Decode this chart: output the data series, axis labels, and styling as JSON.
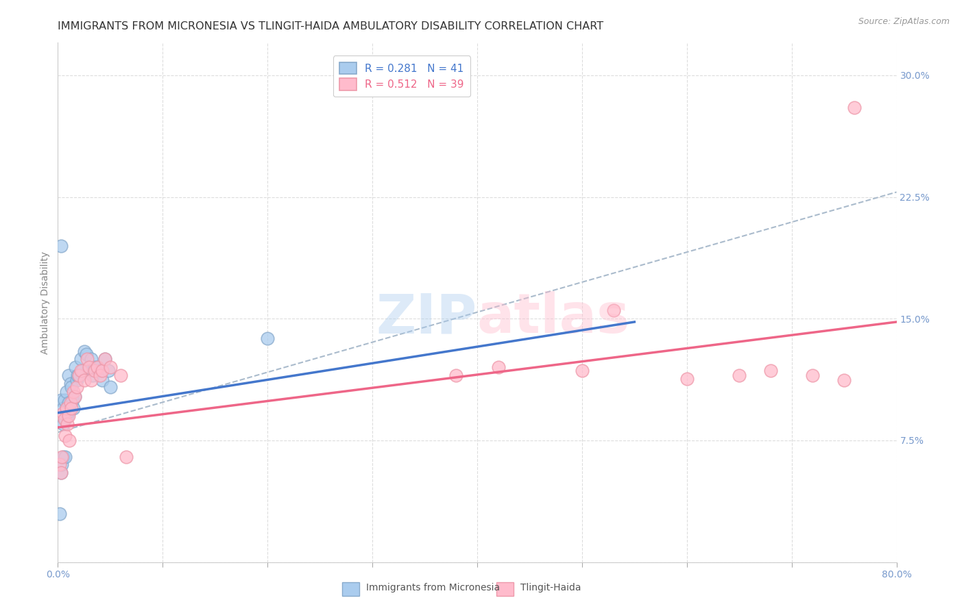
{
  "title": "IMMIGRANTS FROM MICRONESIA VS TLINGIT-HAIDA AMBULATORY DISABILITY CORRELATION CHART",
  "source": "Source: ZipAtlas.com",
  "ylabel": "Ambulatory Disability",
  "xlim": [
    0.0,
    0.8
  ],
  "ylim": [
    0.0,
    0.32
  ],
  "xticks": [
    0.0,
    0.1,
    0.2,
    0.3,
    0.4,
    0.5,
    0.6,
    0.7,
    0.8
  ],
  "xticklabels": [
    "0.0%",
    "",
    "",
    "",
    "",
    "",
    "",
    "",
    "80.0%"
  ],
  "yticks": [
    0.0,
    0.075,
    0.15,
    0.225,
    0.3
  ],
  "yticklabels": [
    "",
    "7.5%",
    "15.0%",
    "22.5%",
    "30.0%"
  ],
  "R_blue": 0.281,
  "N_blue": 41,
  "R_pink": 0.512,
  "N_pink": 39,
  "legend_label_blue": "Immigrants from Micronesia",
  "legend_label_pink": "Tlingit-Haida",
  "blue_scatter_x": [
    0.002,
    0.003,
    0.003,
    0.004,
    0.005,
    0.005,
    0.005,
    0.006,
    0.007,
    0.007,
    0.008,
    0.008,
    0.009,
    0.01,
    0.01,
    0.011,
    0.012,
    0.013,
    0.014,
    0.015,
    0.016,
    0.017,
    0.018,
    0.019,
    0.02,
    0.022,
    0.023,
    0.025,
    0.027,
    0.03,
    0.032,
    0.033,
    0.035,
    0.038,
    0.04,
    0.042,
    0.045,
    0.048,
    0.05,
    0.2,
    0.003
  ],
  "blue_scatter_y": [
    0.03,
    0.1,
    0.055,
    0.06,
    0.095,
    0.085,
    0.065,
    0.1,
    0.088,
    0.065,
    0.105,
    0.095,
    0.09,
    0.115,
    0.098,
    0.093,
    0.11,
    0.108,
    0.1,
    0.095,
    0.102,
    0.12,
    0.112,
    0.115,
    0.115,
    0.125,
    0.118,
    0.13,
    0.128,
    0.118,
    0.125,
    0.115,
    0.12,
    0.12,
    0.118,
    0.112,
    0.125,
    0.118,
    0.108,
    0.138,
    0.195
  ],
  "pink_scatter_x": [
    0.002,
    0.003,
    0.004,
    0.005,
    0.006,
    0.007,
    0.008,
    0.009,
    0.01,
    0.011,
    0.012,
    0.013,
    0.015,
    0.016,
    0.018,
    0.02,
    0.022,
    0.025,
    0.028,
    0.03,
    0.032,
    0.035,
    0.038,
    0.04,
    0.042,
    0.045,
    0.05,
    0.06,
    0.065,
    0.38,
    0.42,
    0.5,
    0.53,
    0.6,
    0.65,
    0.68,
    0.72,
    0.75,
    0.76
  ],
  "pink_scatter_y": [
    0.06,
    0.055,
    0.065,
    0.092,
    0.088,
    0.078,
    0.095,
    0.085,
    0.09,
    0.075,
    0.098,
    0.095,
    0.105,
    0.102,
    0.108,
    0.115,
    0.118,
    0.112,
    0.125,
    0.12,
    0.112,
    0.118,
    0.12,
    0.115,
    0.118,
    0.125,
    0.12,
    0.115,
    0.065,
    0.115,
    0.12,
    0.118,
    0.155,
    0.113,
    0.115,
    0.118,
    0.115,
    0.112,
    0.28
  ],
  "blue_line_x": [
    0.0,
    0.55
  ],
  "blue_line_y": [
    0.092,
    0.148
  ],
  "pink_line_x": [
    0.0,
    0.8
  ],
  "pink_line_y": [
    0.083,
    0.148
  ],
  "dashed_line_x": [
    0.0,
    0.8
  ],
  "dashed_line_y": [
    0.08,
    0.228
  ],
  "background_color": "#FFFFFF",
  "grid_color": "#DDDDDD",
  "tick_color": "#7799CC",
  "title_fontsize": 11.5,
  "axis_label_fontsize": 10,
  "tick_fontsize": 10,
  "legend_fontsize": 11,
  "scatter_size": 180
}
